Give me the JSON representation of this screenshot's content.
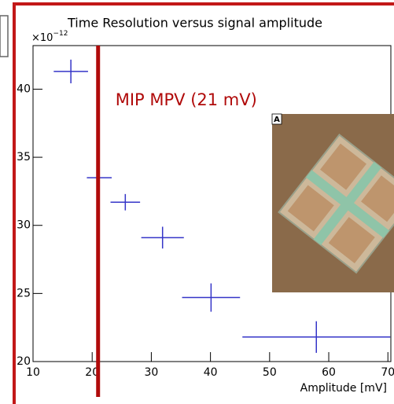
{
  "chart_data": {
    "type": "errorbar",
    "title": "Time Resolution versus signal amplitude",
    "x_label": "Amplitude [mV]",
    "y_multiplier_base": "×10",
    "y_multiplier_exponent": "−12",
    "x": [
      16.4,
      21.2,
      25.6,
      31.9,
      40.1,
      57.9
    ],
    "xerr": [
      2.9,
      2.1,
      2.5,
      3.6,
      4.9,
      12.5
    ],
    "values": [
      41.3,
      33.5,
      31.7,
      29.1,
      24.7,
      21.8
    ],
    "yerr": [
      0.87,
      0.46,
      0.6,
      0.8,
      1.04,
      1.16
    ],
    "color": "#3535c8",
    "xlim": [
      10,
      70.5
    ],
    "xticks": [
      10,
      20,
      30,
      40,
      50,
      60,
      70
    ],
    "ylim": [
      20,
      43.2
    ],
    "yticks": [
      20,
      25,
      30,
      35,
      40
    ],
    "vline": {
      "value": 21,
      "color": "#b00a0a",
      "label": "MIP MPV (21 mV)"
    },
    "inset_label": "A"
  }
}
